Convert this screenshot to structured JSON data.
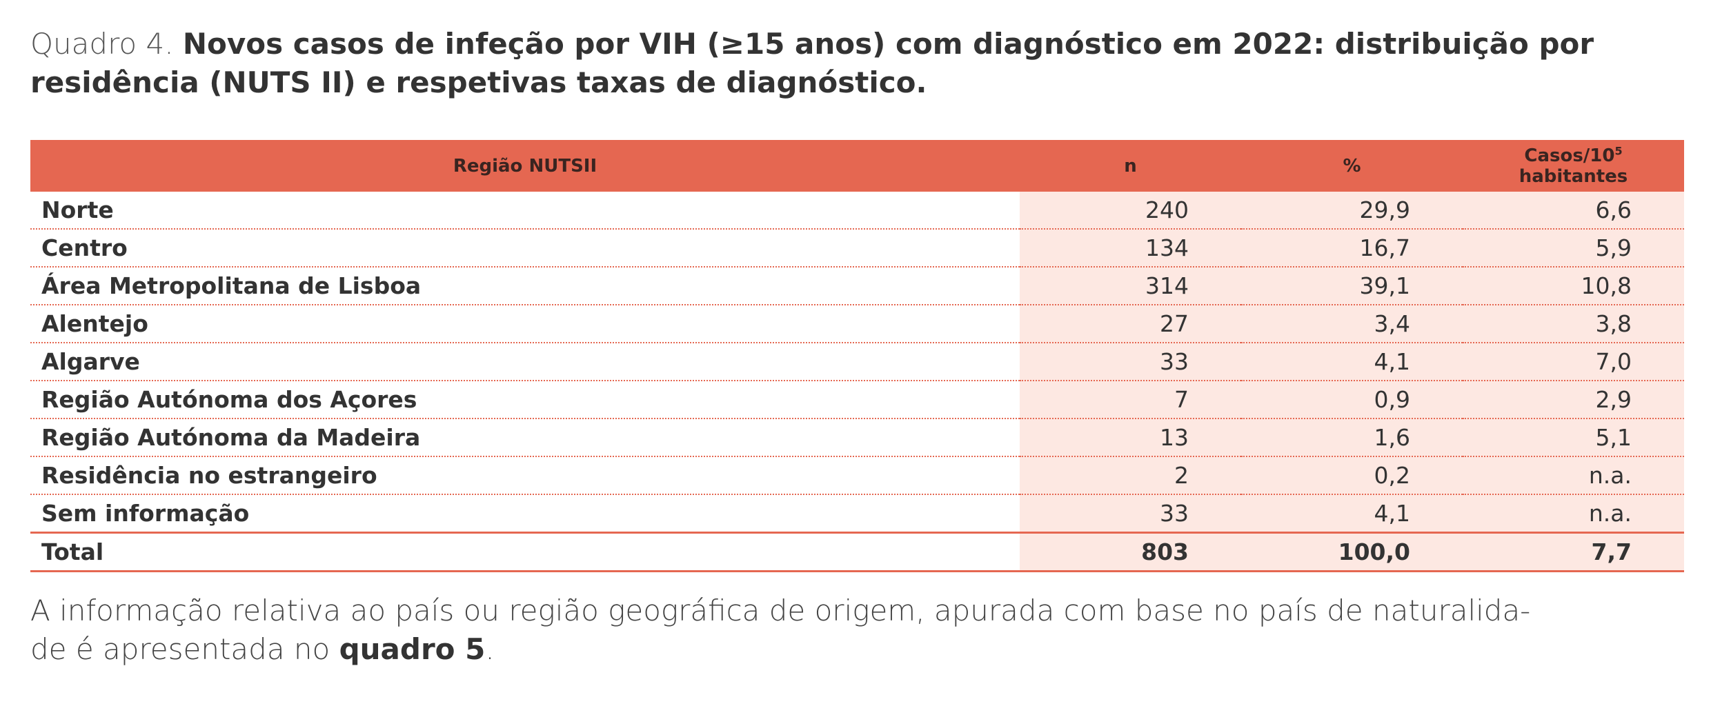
{
  "caption": {
    "label": "Quadro 4.",
    "title": "Novos casos de infeção por VIH (≥15 anos) com diagnóstico em 2022: distribuição por residência (NUTS II) e respetivas taxas de diagnóstico."
  },
  "table": {
    "headers": {
      "region": "Região NUTSII",
      "n": "n",
      "pct": "%",
      "rate_line1": "Casos/10",
      "rate_sup": "5",
      "rate_line2": "habitantes"
    },
    "rows": [
      {
        "region": "Norte",
        "n": "240",
        "pct": "29,9",
        "rate": "6,6"
      },
      {
        "region": "Centro",
        "n": "134",
        "pct": "16,7",
        "rate": "5,9"
      },
      {
        "region": "Área Metropolitana de Lisboa",
        "n": "314",
        "pct": "39,1",
        "rate": "10,8"
      },
      {
        "region": "Alentejo",
        "n": "27",
        "pct": "3,4",
        "rate": "3,8"
      },
      {
        "region": "Algarve",
        "n": "33",
        "pct": "4,1",
        "rate": "7,0"
      },
      {
        "region": "Região Autónoma dos Açores",
        "n": "7",
        "pct": "0,9",
        "rate": "2,9"
      },
      {
        "region": "Região Autónoma da Madeira",
        "n": "13",
        "pct": "1,6",
        "rate": "5,1"
      },
      {
        "region": "Residência no estrangeiro",
        "n": "2",
        "pct": "0,2",
        "rate": "n.a."
      },
      {
        "region": "Sem informação",
        "n": "33",
        "pct": "4,1",
        "rate": "n.a."
      }
    ],
    "total": {
      "region": "Total",
      "n": "803",
      "pct": "100,0",
      "rate": "7,7"
    }
  },
  "note": {
    "line1": "A informação relativa ao país ou região geográfica de origem, apurada com base no país de naturalida-",
    "line2_prefix": "de é apresentada no ",
    "line2_ref": "quadro 5",
    "line2_suffix": "."
  },
  "colors": {
    "header_bg": "#e56751",
    "numeric_column_bg": "#fde8e2",
    "row_divider": "#e56751"
  }
}
